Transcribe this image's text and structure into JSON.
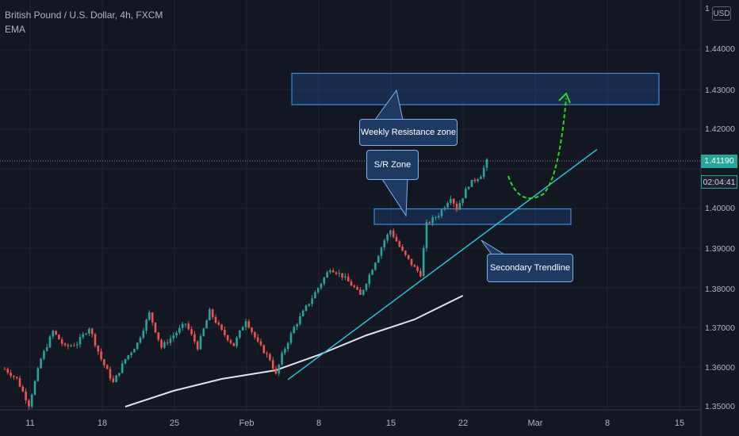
{
  "header": {
    "symbol_line": "British Pound / U.S. Dollar, 4h, FXCM",
    "indicator": "EMA",
    "currency_button": "USD"
  },
  "price_axis": {
    "ticks": [
      "1.44000",
      "1.43000",
      "1.42000",
      "1.41000",
      "1.40000",
      "1.39000",
      "1.38000",
      "1.37000",
      "1.36000",
      "1.35000"
    ],
    "top_tick_partial": "1",
    "current_price": "1.41190",
    "countdown": "02:04:41"
  },
  "time_axis": {
    "ticks": [
      "11",
      "18",
      "25",
      "Feb",
      "8",
      "15",
      "22",
      "Mar",
      "8",
      "15"
    ]
  },
  "annotations": {
    "weekly_resistance": "Weekly Resistance zone",
    "sr_zone": "S/R Zone",
    "secondary_trendline": "Secondary Trendline"
  },
  "colors": {
    "background": "#131722",
    "bull": "#26a69a",
    "bear": "#ef5350",
    "ema": "#e0e3eb",
    "trendline": "#2bc0d6",
    "zone_border": "#3d8be0",
    "projection_arrow": "#22dd22",
    "grid": "#1f2433"
  },
  "chart_data": {
    "type": "candlestick",
    "title": "British Pound / U.S. Dollar, 4h, FXCM",
    "indicator": "EMA",
    "ylim": [
      1.349,
      1.452
    ],
    "yticks": [
      1.35,
      1.36,
      1.37,
      1.38,
      1.39,
      1.4,
      1.41,
      1.42,
      1.43,
      1.44
    ],
    "xticks": [
      "11",
      "18",
      "25",
      "Feb",
      "8",
      "15",
      "22",
      "Mar",
      "8",
      "15"
    ],
    "current_price": 1.4119,
    "close_path": [
      {
        "t": 0,
        "p": 1.3595
      },
      {
        "t": 2,
        "p": 1.357
      },
      {
        "t": 4,
        "p": 1.3505
      },
      {
        "t": 6,
        "p": 1.362
      },
      {
        "t": 8,
        "p": 1.369
      },
      {
        "t": 10,
        "p": 1.365
      },
      {
        "t": 12,
        "p": 1.366
      },
      {
        "t": 14,
        "p": 1.37
      },
      {
        "t": 16,
        "p": 1.362
      },
      {
        "t": 18,
        "p": 1.356
      },
      {
        "t": 20,
        "p": 1.362
      },
      {
        "t": 22,
        "p": 1.366
      },
      {
        "t": 24,
        "p": 1.3735
      },
      {
        "t": 26,
        "p": 1.365
      },
      {
        "t": 28,
        "p": 1.368
      },
      {
        "t": 30,
        "p": 1.371
      },
      {
        "t": 32,
        "p": 1.365
      },
      {
        "t": 34,
        "p": 1.374
      },
      {
        "t": 36,
        "p": 1.369
      },
      {
        "t": 38,
        "p": 1.3655
      },
      {
        "t": 40,
        "p": 1.372
      },
      {
        "t": 42,
        "p": 1.366
      },
      {
        "t": 44,
        "p": 1.362
      },
      {
        "t": 45,
        "p": 1.358
      },
      {
        "t": 46,
        "p": 1.363
      },
      {
        "t": 48,
        "p": 1.37
      },
      {
        "t": 50,
        "p": 1.375
      },
      {
        "t": 52,
        "p": 1.38
      },
      {
        "t": 54,
        "p": 1.385
      },
      {
        "t": 56,
        "p": 1.383
      },
      {
        "t": 58,
        "p": 1.38
      },
      {
        "t": 59,
        "p": 1.378
      },
      {
        "t": 61,
        "p": 1.385
      },
      {
        "t": 63,
        "p": 1.392
      },
      {
        "t": 64,
        "p": 1.3945
      },
      {
        "t": 66,
        "p": 1.389
      },
      {
        "t": 68,
        "p": 1.385
      },
      {
        "t": 69,
        "p": 1.3835
      },
      {
        "t": 70,
        "p": 1.396
      },
      {
        "t": 72,
        "p": 1.3985
      },
      {
        "t": 74,
        "p": 1.403
      },
      {
        "t": 75,
        "p": 1.4
      },
      {
        "t": 77,
        "p": 1.406
      },
      {
        "t": 79,
        "p": 1.4085
      },
      {
        "t": 80,
        "p": 1.4119
      }
    ],
    "ema": [
      {
        "t": 20,
        "p": 1.35
      },
      {
        "t": 28,
        "p": 1.354
      },
      {
        "t": 36,
        "p": 1.357
      },
      {
        "t": 45,
        "p": 1.3592
      },
      {
        "t": 52,
        "p": 1.363
      },
      {
        "t": 60,
        "p": 1.368
      },
      {
        "t": 68,
        "p": 1.372
      },
      {
        "t": 76,
        "p": 1.378
      }
    ],
    "zones": [
      {
        "name": "Weekly Resistance zone",
        "from": 1.4262,
        "to": 1.4341
      },
      {
        "name": "S/R Zone",
        "from": 1.396,
        "to": 1.3999
      }
    ],
    "trendline": {
      "name": "Secondary Trendline",
      "from": {
        "date": "Feb 5",
        "p": 1.3568
      },
      "to": {
        "date": "Mar 7",
        "p": 1.4149
      }
    }
  }
}
